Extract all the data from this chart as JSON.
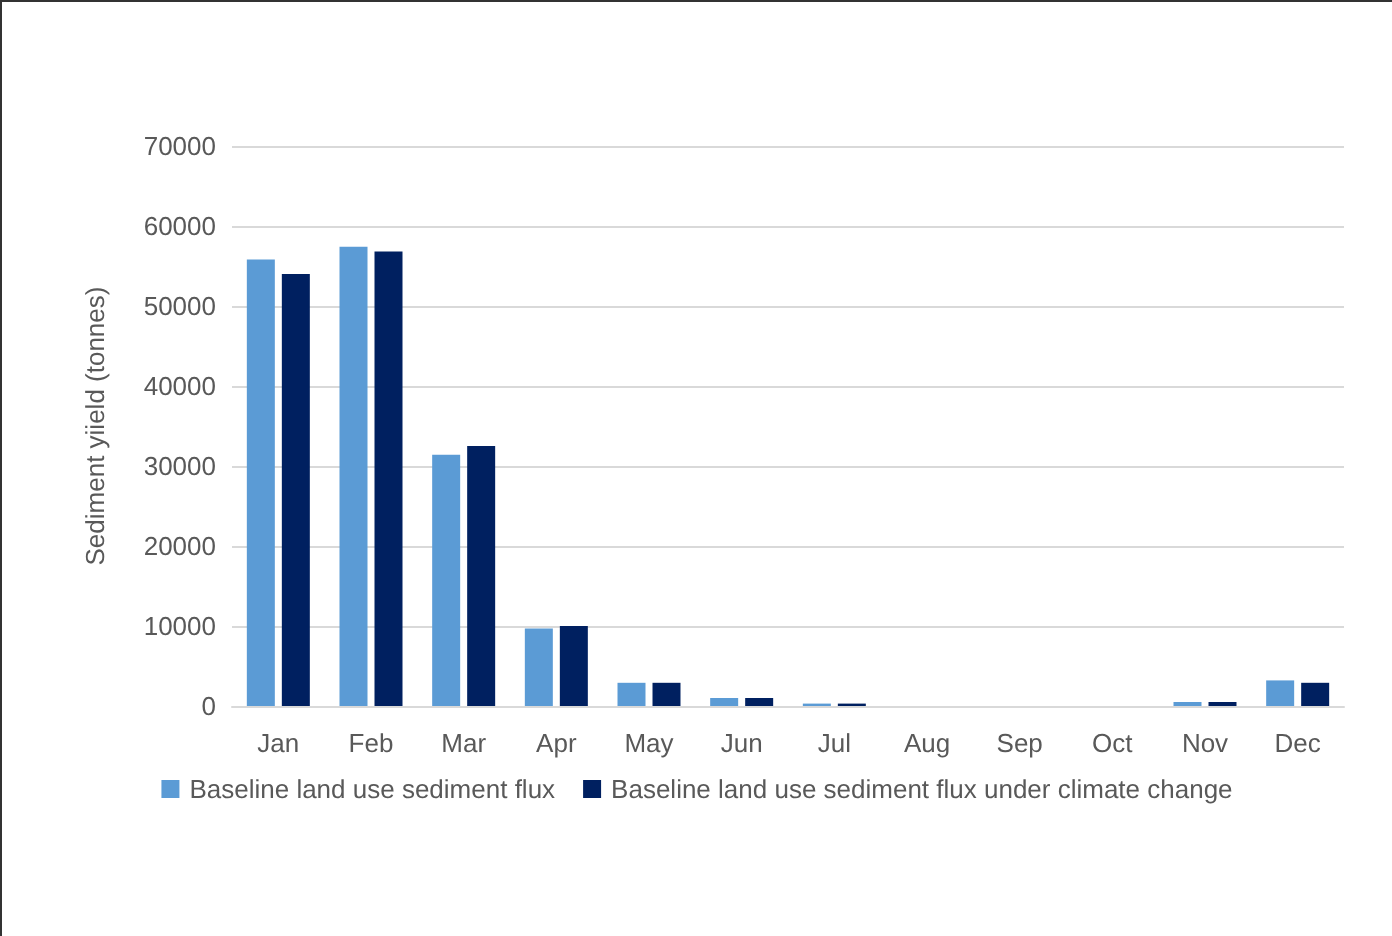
{
  "chart_data": {
    "type": "bar",
    "ylabel": "Sediment yiield (tonnes)",
    "categories": [
      "Jan",
      "Feb",
      "Mar",
      "Apr",
      "May",
      "Jun",
      "Jul",
      "Aug",
      "Sep",
      "Oct",
      "Nov",
      "Dec"
    ],
    "series": [
      {
        "name": "Baseline land use sediment flux",
        "color": "#5b9bd5",
        "values": [
          55800,
          57400,
          31400,
          9700,
          2900,
          1000,
          300,
          0,
          0,
          0,
          500,
          3200
        ]
      },
      {
        "name": "Baseline land use sediment flux under climate change",
        "color": "#002060",
        "values": [
          54000,
          56800,
          32500,
          10000,
          2900,
          1000,
          300,
          0,
          0,
          0,
          500,
          2900
        ]
      }
    ],
    "ylim": [
      0,
      70000
    ],
    "yticks": [
      0,
      10000,
      20000,
      30000,
      40000,
      50000,
      60000,
      70000
    ],
    "grid": "y",
    "legend": "bottom"
  }
}
